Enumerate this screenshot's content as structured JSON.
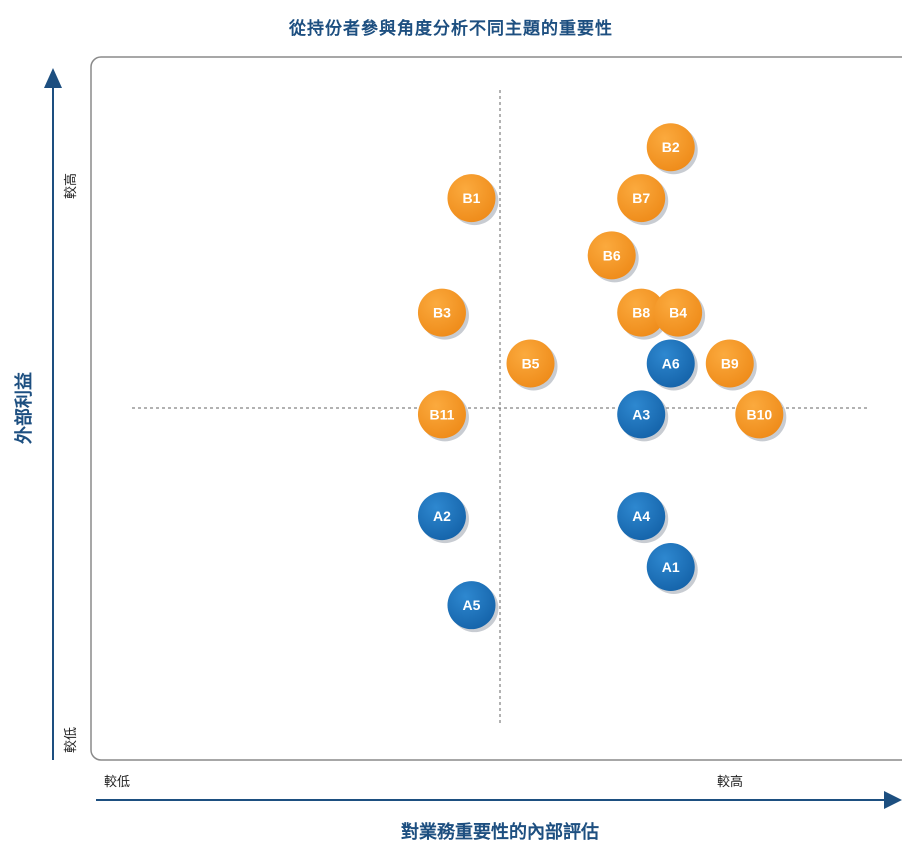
{
  "chart_data": {
    "type": "scatter",
    "title": "從持份者參與角度分析不同主題的重要性",
    "xlabel": "對業務重要性的內部評估",
    "ylabel": "外部利益",
    "x_low_label": "較低",
    "x_high_label": "較高",
    "y_low_label": "較低",
    "y_high_label": "較高",
    "xlim": [
      0,
      10
    ],
    "ylim": [
      0,
      10
    ],
    "grid": false,
    "colors": {
      "A": "#1a6fb8",
      "B": "#f39423"
    },
    "points": [
      {
        "label": "B2",
        "group": "B",
        "x": 7.3,
        "y": 9.1
      },
      {
        "label": "B1",
        "group": "B",
        "x": 4.6,
        "y": 8.3
      },
      {
        "label": "B7",
        "group": "B",
        "x": 6.9,
        "y": 8.3
      },
      {
        "label": "B6",
        "group": "B",
        "x": 6.5,
        "y": 7.4
      },
      {
        "label": "B3",
        "group": "B",
        "x": 4.2,
        "y": 6.5
      },
      {
        "label": "B8",
        "group": "B",
        "x": 6.9,
        "y": 6.5
      },
      {
        "label": "B4",
        "group": "B",
        "x": 7.4,
        "y": 6.5
      },
      {
        "label": "B5",
        "group": "B",
        "x": 5.4,
        "y": 5.7
      },
      {
        "label": "A6",
        "group": "A",
        "x": 7.3,
        "y": 5.7
      },
      {
        "label": "B9",
        "group": "B",
        "x": 8.1,
        "y": 5.7
      },
      {
        "label": "B11",
        "group": "B",
        "x": 4.2,
        "y": 4.9
      },
      {
        "label": "A3",
        "group": "A",
        "x": 6.9,
        "y": 4.9
      },
      {
        "label": "B10",
        "group": "B",
        "x": 8.5,
        "y": 4.9
      },
      {
        "label": "A2",
        "group": "A",
        "x": 4.2,
        "y": 3.3
      },
      {
        "label": "A4",
        "group": "A",
        "x": 6.9,
        "y": 3.3
      },
      {
        "label": "A1",
        "group": "A",
        "x": 7.3,
        "y": 2.5
      },
      {
        "label": "A5",
        "group": "A",
        "x": 4.6,
        "y": 1.9
      }
    ]
  }
}
